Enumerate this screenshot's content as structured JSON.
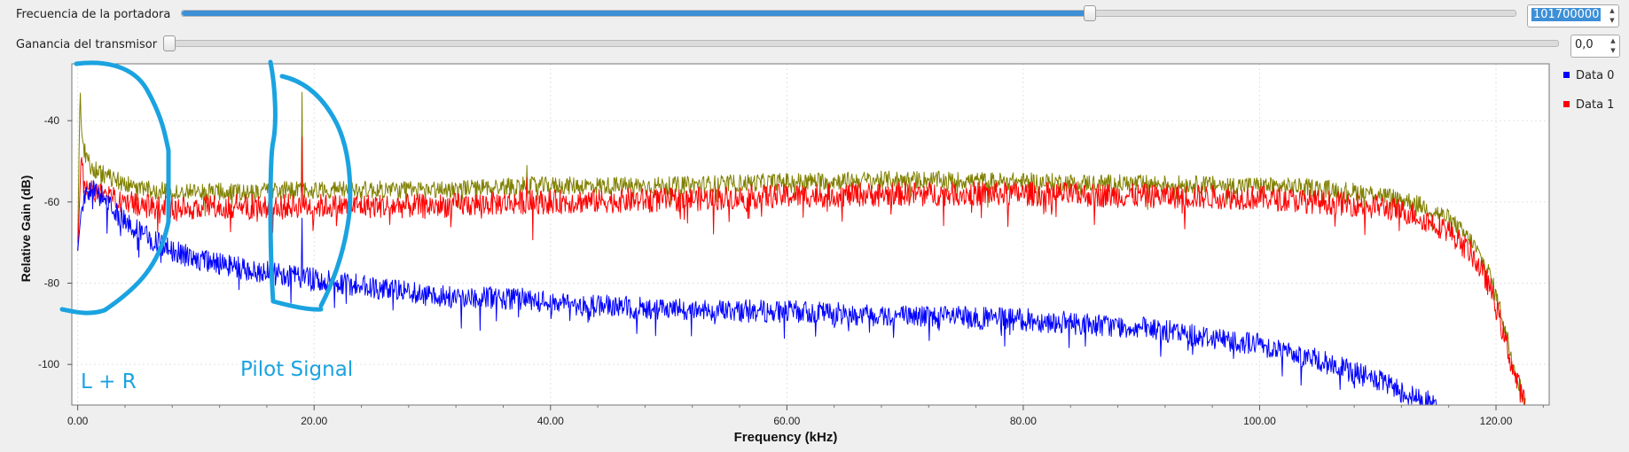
{
  "controls": {
    "carrier_frequency": {
      "label": "Frecuencia de la portadora",
      "value": "101700000",
      "slider_fraction": 0.68
    },
    "tx_gain": {
      "label": "Ganancia del transmisor",
      "value": "0,0",
      "slider_fraction": 0.0
    }
  },
  "chart_data": {
    "type": "line",
    "title": "",
    "xlabel": "Frequency (kHz)",
    "ylabel": "Relative Gain (dB)",
    "xlim": [
      -0.5,
      124.5
    ],
    "ylim": [
      -110,
      -26
    ],
    "xticks": [
      0,
      20,
      40,
      60,
      80,
      100,
      120
    ],
    "xtick_labels": [
      "0.00",
      "20.00",
      "40.00",
      "60.00",
      "80.00",
      "100.00",
      "120.00"
    ],
    "yticks": [
      -40,
      -60,
      -80,
      -100
    ],
    "ytick_labels": [
      "-40",
      "-60",
      "-80",
      "-100"
    ],
    "grid": true,
    "legend_position": "right",
    "legend": [
      {
        "name": "Data 0",
        "color": "#0000ff"
      },
      {
        "name": "Data 1",
        "color": "#ff0000"
      }
    ],
    "series": [
      {
        "name": "Olive trace",
        "color": "#808000",
        "in_legend": false,
        "x": [
          0,
          0.2,
          0.3,
          0.5,
          1,
          2,
          4,
          6,
          8,
          10,
          15,
          19,
          20,
          25,
          30,
          38,
          40,
          50,
          60,
          70,
          80,
          90,
          100,
          105,
          110,
          113,
          116,
          118,
          119.5,
          120.5,
          121.5,
          122.5
        ],
        "y": [
          -70,
          -31,
          -42,
          -47,
          -51,
          -53,
          -55.5,
          -57,
          -57.5,
          -57.5,
          -57.5,
          -57,
          -57,
          -57,
          -57,
          -56,
          -56,
          -56,
          -55,
          -54.5,
          -55,
          -55.5,
          -56,
          -56.5,
          -58,
          -60,
          -64,
          -70,
          -78,
          -88,
          -100,
          -110
        ],
        "spikes": [
          {
            "x": 19,
            "y": -33
          },
          {
            "x": 38,
            "y": -51
          }
        ],
        "noise_db": 2.2
      },
      {
        "name": "Data 1",
        "color": "#ff0000",
        "in_legend": true,
        "x": [
          0,
          0.3,
          0.5,
          1,
          2,
          4,
          6,
          8,
          10,
          15,
          20,
          25,
          30,
          38,
          40,
          50,
          60,
          70,
          80,
          90,
          100,
          105,
          110,
          113,
          116,
          118,
          119.5,
          120.5,
          121.5,
          122.5
        ],
        "y": [
          -72,
          -48,
          -55,
          -57,
          -58.5,
          -60,
          -61,
          -61.5,
          -61.5,
          -61,
          -61,
          -61,
          -61,
          -60,
          -60,
          -59.5,
          -58.5,
          -58,
          -58,
          -58.5,
          -59,
          -60,
          -61,
          -63,
          -67,
          -73,
          -81,
          -91,
          -102,
          -110
        ],
        "spikes": [
          {
            "x": 19,
            "y": -44
          },
          {
            "x": 38,
            "y": -54
          }
        ],
        "noise_db": 3.0
      },
      {
        "name": "Data 0",
        "color": "#0000ff",
        "in_legend": true,
        "x": [
          0,
          0.3,
          0.8,
          1.5,
          3,
          5,
          8,
          10,
          15,
          20,
          25,
          30,
          38,
          40,
          50,
          60,
          70,
          80,
          90,
          95,
          100,
          105,
          110,
          113,
          115
        ],
        "y": [
          -72,
          -62,
          -57,
          -57,
          -62,
          -67,
          -72,
          -74,
          -77,
          -79,
          -81,
          -83,
          -84,
          -85,
          -86.5,
          -87,
          -88,
          -89,
          -91,
          -93,
          -95,
          -99,
          -104,
          -108,
          -110
        ],
        "spikes": [
          {
            "x": 19,
            "y": -64
          }
        ],
        "noise_db": 2.8
      }
    ]
  },
  "annotations": {
    "left_band_label": "L + R",
    "pilot_label": "Pilot Signal",
    "color": "#1aa3e0"
  }
}
